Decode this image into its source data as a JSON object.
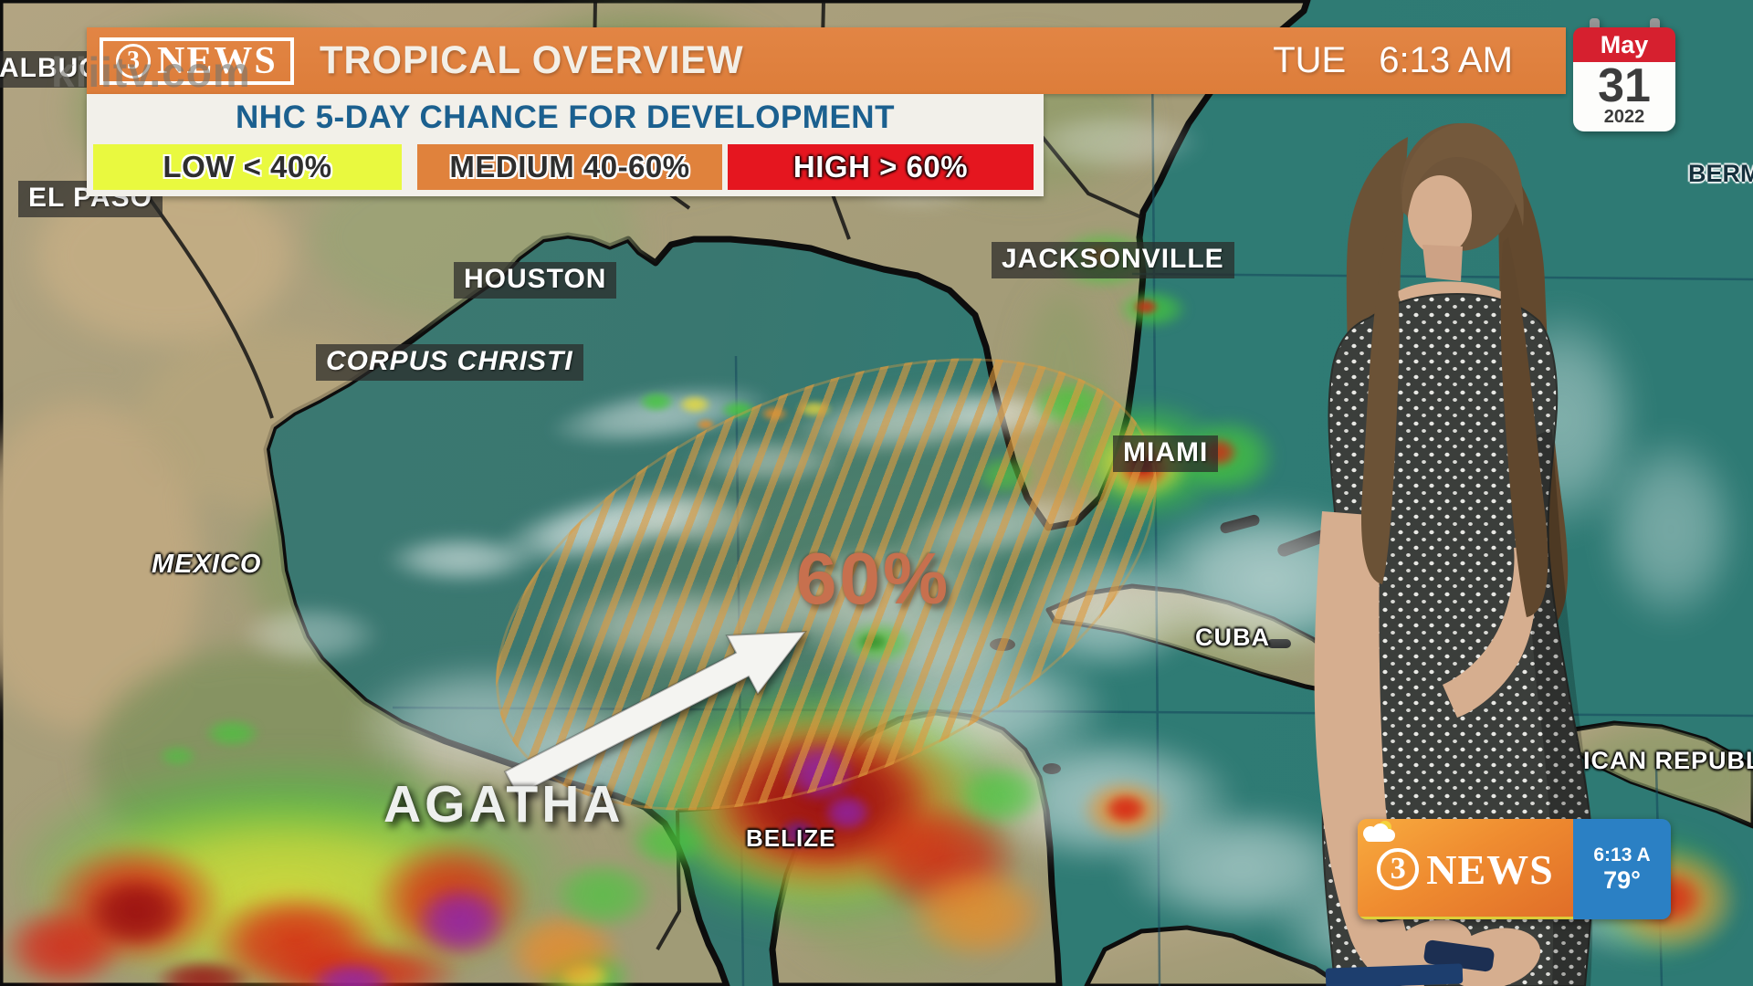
{
  "header": {
    "logo": {
      "number": "3",
      "name": "NEWS"
    },
    "title": "TROPICAL OVERVIEW",
    "day": "TUE",
    "time": "6:13 AM",
    "banner_color": "#e0813e"
  },
  "watermark": "kiiitv.com",
  "calendar": {
    "month": "May",
    "day": "31",
    "year": "2022",
    "header_color": "#d6202f"
  },
  "dev_panel": {
    "title": "NHC 5-DAY CHANCE FOR DEVELOPMENT",
    "title_color": "#1b608f",
    "legend": [
      {
        "label": "LOW < 40%",
        "color": "#e9f93f"
      },
      {
        "label": "MEDIUM 40-60%",
        "color": "#e0823c"
      },
      {
        "label": "HIGH > 60%",
        "color": "#e5161f"
      }
    ]
  },
  "map": {
    "development_area": {
      "label": "60%",
      "hatch_color": "#dd9a3e",
      "label_color": "#c7704e"
    },
    "labels": [
      "ALBUQ",
      "EL PASO",
      "HOUSTON",
      "CORPUS CHRISTI",
      "JACKSONVILLE",
      "MIAMI",
      "MEXICO",
      "CUBA",
      "BELIZE",
      "AGATHA",
      "BERM",
      "ICAN REPUBLI"
    ]
  },
  "bug": {
    "logo": {
      "number": "3",
      "name": "NEWS"
    },
    "time": "6:13 A",
    "temp": "79°",
    "icon": "partly-cloudy",
    "blue_color": "#2b80c4"
  }
}
